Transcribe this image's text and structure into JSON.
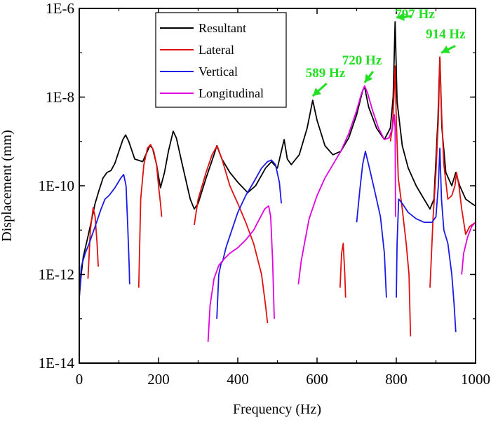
{
  "chart_data": {
    "type": "line",
    "xlabel": "Frequency (Hz)",
    "ylabel": "Displacement (mm)",
    "xlim": [
      0,
      1000
    ],
    "ylim": [
      1e-14,
      1e-06
    ],
    "yscale": "log",
    "grid": false,
    "legend_position": "top-center",
    "x_ticks": [
      0,
      200,
      400,
      600,
      800,
      1000
    ],
    "x_tick_labels": [
      "0",
      "200",
      "400",
      "600",
      "800",
      "1000"
    ],
    "y_major_ticks": [
      1e-14,
      1e-12,
      1e-10,
      1e-08,
      1e-06
    ],
    "y_tick_labels": [
      "1E-14",
      "1E-12",
      "1E-10",
      "1E-8",
      "1E-6"
    ],
    "series": [
      {
        "name": "Resultant",
        "color": "#000000",
        "segments": [
          [
            [
              0,
              3e-13
            ],
            [
              5,
              1e-12
            ],
            [
              10,
              2.5e-12
            ],
            [
              20,
              6e-12
            ],
            [
              30,
              1.5e-11
            ],
            [
              40,
              4e-11
            ],
            [
              50,
              8e-11
            ],
            [
              60,
              1.5e-10
            ],
            [
              70,
              2e-10
            ],
            [
              80,
              2.2e-10
            ],
            [
              90,
              3.2e-10
            ],
            [
              100,
              6e-10
            ],
            [
              110,
              1.1e-09
            ],
            [
              117,
              1.4e-09
            ],
            [
              125,
              1e-09
            ],
            [
              140,
              4e-10
            ],
            [
              160,
              3.5e-10
            ],
            [
              178,
              8e-10
            ],
            [
              185,
              7e-10
            ],
            [
              195,
              3e-10
            ],
            [
              205,
              9e-11
            ],
            [
              215,
              2e-10
            ],
            [
              225,
              6e-10
            ],
            [
              237,
              1.7e-09
            ],
            [
              245,
              1.2e-09
            ],
            [
              260,
              3e-10
            ],
            [
              280,
              5e-11
            ],
            [
              290,
              3e-11
            ],
            [
              300,
              4e-11
            ],
            [
              320,
              1.5e-10
            ],
            [
              340,
              5e-10
            ],
            [
              347,
              8e-10
            ],
            [
              360,
              4e-10
            ],
            [
              380,
              2e-10
            ],
            [
              400,
              1.2e-10
            ],
            [
              425,
              7e-11
            ],
            [
              445,
              1e-10
            ],
            [
              470,
              2.5e-10
            ],
            [
              485,
              3.5e-10
            ],
            [
              500,
              2.5e-10
            ],
            [
              510,
              6e-10
            ],
            [
              517,
              1.1e-09
            ],
            [
              525,
              4e-10
            ],
            [
              535,
              3e-10
            ],
            [
              555,
              5e-10
            ],
            [
              575,
              2e-09
            ],
            [
              589,
              8.5e-09
            ],
            [
              600,
              3e-09
            ],
            [
              620,
              8e-10
            ],
            [
              640,
              5e-10
            ],
            [
              660,
              6e-10
            ],
            [
              680,
              1.2e-09
            ],
            [
              700,
              4e-09
            ],
            [
              715,
              1.4e-08
            ],
            [
              720,
              1.7e-08
            ],
            [
              730,
              6e-09
            ],
            [
              750,
              2e-09
            ],
            [
              770,
              1.1e-09
            ],
            [
              785,
              2e-09
            ],
            [
              792,
              1e-08
            ],
            [
              797,
              5e-07
            ],
            [
              802,
              8e-09
            ],
            [
              815,
              8e-10
            ],
            [
              830,
              2.5e-10
            ],
            [
              850,
              1e-10
            ],
            [
              870,
              5e-11
            ],
            [
              885,
              3e-11
            ],
            [
              895,
              5e-11
            ],
            [
              905,
              3e-09
            ],
            [
              910,
              8e-08
            ],
            [
              915,
              2e-09
            ],
            [
              925,
              2e-10
            ],
            [
              940,
              1e-10
            ],
            [
              950,
              2e-10
            ],
            [
              960,
              1e-10
            ],
            [
              975,
              5e-11
            ],
            [
              990,
              4e-11
            ],
            [
              1000,
              3.5e-11
            ]
          ]
        ]
      },
      {
        "name": "Lateral",
        "color": "#e01010",
        "segments": [
          [
            [
              22,
              8e-13
            ],
            [
              28,
              1e-11
            ],
            [
              35,
              3.2e-11
            ],
            [
              40,
              2e-11
            ],
            [
              45,
              5e-12
            ],
            [
              48,
              1.5e-12
            ]
          ],
          [
            [
              150,
              5e-13
            ],
            [
              155,
              5e-11
            ],
            [
              163,
              3e-10
            ],
            [
              172,
              7e-10
            ],
            [
              180,
              8.5e-10
            ],
            [
              188,
              6e-10
            ],
            [
              195,
              3e-10
            ],
            [
              200,
              1e-10
            ],
            [
              205,
              4e-11
            ],
            [
              208,
              2e-11
            ]
          ],
          [
            [
              290,
              1.3e-11
            ],
            [
              300,
              5e-11
            ],
            [
              320,
              2e-10
            ],
            [
              335,
              5e-10
            ],
            [
              348,
              8e-10
            ],
            [
              360,
              4e-10
            ],
            [
              380,
              1e-10
            ],
            [
              400,
              4e-11
            ],
            [
              420,
              1.5e-11
            ],
            [
              440,
              5e-12
            ],
            [
              460,
              1e-12
            ],
            [
              470,
              2e-13
            ],
            [
              475,
              8e-14
            ]
          ],
          [
            [
              658,
              5e-13
            ],
            [
              662,
              3e-12
            ],
            [
              666,
              5e-12
            ],
            [
              670,
              1e-12
            ],
            [
              672,
              3e-13
            ]
          ],
          [
            [
              785,
              1e-09
            ],
            [
              790,
              2e-09
            ],
            [
              794,
              1e-08
            ],
            [
              797,
              5e-08
            ],
            [
              800,
              3e-09
            ],
            [
              805,
              1.5e-10
            ],
            [
              815,
              3e-11
            ],
            [
              825,
              5e-12
            ],
            [
              832,
              1e-12
            ],
            [
              836,
              4e-14
            ]
          ],
          [
            [
              885,
              5e-13
            ],
            [
              893,
              2e-11
            ],
            [
              900,
              2e-10
            ],
            [
              906,
              3e-09
            ],
            [
              910,
              8e-08
            ],
            [
              914,
              5e-09
            ],
            [
              920,
              3e-10
            ],
            [
              930,
              5e-11
            ],
            [
              940,
              6e-11
            ],
            [
              948,
              1e-10
            ],
            [
              952,
              2e-10
            ],
            [
              958,
              1e-10
            ],
            [
              965,
              3e-11
            ],
            [
              975,
              8e-12
            ],
            [
              985,
              1.2e-11
            ],
            [
              1000,
              1.5e-11
            ]
          ]
        ]
      },
      {
        "name": "Vertical",
        "color": "#1a1ae6",
        "segments": [
          [
            [
              0,
              3e-13
            ],
            [
              5,
              1.5e-12
            ],
            [
              15,
              3e-12
            ],
            [
              25,
              5e-12
            ],
            [
              40,
              1.2e-11
            ],
            [
              55,
              3e-11
            ],
            [
              65,
              5e-11
            ],
            [
              75,
              6e-11
            ],
            [
              90,
              9e-11
            ],
            [
              105,
              1.5e-10
            ],
            [
              112,
              1.8e-10
            ],
            [
              118,
              1e-10
            ],
            [
              122,
              1.5e-11
            ],
            [
              126,
              1.5e-12
            ],
            [
              127,
              6e-13
            ]
          ],
          [
            [
              347,
              1e-13
            ],
            [
              352,
              1e-12
            ],
            [
              358,
              1.8e-12
            ],
            [
              362,
              2e-12
            ],
            [
              370,
              4e-12
            ],
            [
              385,
              1e-11
            ],
            [
              400,
              2.5e-11
            ],
            [
              420,
              6e-11
            ],
            [
              440,
              1.2e-10
            ],
            [
              460,
              2.5e-10
            ],
            [
              475,
              3.5e-10
            ],
            [
              485,
              3.8e-10
            ],
            [
              495,
              3e-10
            ],
            [
              505,
              1.2e-10
            ],
            [
              510,
              4e-11
            ]
          ],
          [
            [
              700,
              1.5e-11
            ],
            [
              708,
              8e-11
            ],
            [
              715,
              3e-10
            ],
            [
              722,
              6e-10
            ],
            [
              730,
              3e-10
            ],
            [
              745,
              8e-11
            ],
            [
              760,
              2e-11
            ],
            [
              770,
              3e-12
            ],
            [
              775,
              3e-13
            ]
          ],
          [
            [
              800,
              3e-13
            ],
            [
              802,
              5e-12
            ],
            [
              806,
              5e-11
            ],
            [
              815,
              4e-11
            ],
            [
              830,
              2.5e-11
            ],
            [
              850,
              1.8e-11
            ],
            [
              870,
              1.5e-11
            ],
            [
              890,
              1.5e-11
            ],
            [
              900,
              2e-11
            ],
            [
              906,
              1e-10
            ],
            [
              910,
              7e-10
            ],
            [
              914,
              5e-11
            ],
            [
              920,
              1e-11
            ],
            [
              930,
              5e-12
            ],
            [
              940,
              1e-12
            ],
            [
              946,
              2e-13
            ],
            [
              950,
              5e-14
            ]
          ]
        ]
      },
      {
        "name": "Longitudinal",
        "color": "#e000e0",
        "segments": [
          [
            [
              325,
              3e-14
            ],
            [
              330,
              2e-13
            ],
            [
              340,
              8e-13
            ],
            [
              352,
              1.6e-12
            ],
            [
              365,
              2.2e-12
            ],
            [
              380,
              3e-12
            ],
            [
              400,
              4e-12
            ],
            [
              420,
              6e-12
            ],
            [
              440,
              1e-11
            ],
            [
              455,
              1.8e-11
            ],
            [
              468,
              3e-11
            ],
            [
              478,
              3.5e-11
            ],
            [
              483,
              2e-11
            ],
            [
              488,
              2e-12
            ],
            [
              492,
              1e-13
            ]
          ],
          [
            [
              553,
              6e-13
            ],
            [
              560,
              2e-12
            ],
            [
              570,
              6e-12
            ],
            [
              580,
              1.8e-11
            ],
            [
              600,
              6e-11
            ],
            [
              620,
              1.5e-10
            ],
            [
              640,
              3e-10
            ],
            [
              660,
              6e-10
            ],
            [
              680,
              1.5e-09
            ],
            [
              700,
              5e-09
            ],
            [
              712,
              1.2e-08
            ],
            [
              720,
              1.8e-08
            ],
            [
              728,
              1.2e-08
            ],
            [
              740,
              5e-09
            ],
            [
              755,
              2e-09
            ],
            [
              770,
              1.1e-09
            ],
            [
              782,
              1.2e-09
            ],
            [
              790,
              2e-09
            ],
            [
              795,
              4e-09
            ],
            [
              797,
              2e-09
            ],
            [
              798,
              2e-11
            ]
          ],
          [
            [
              965,
              1e-12
            ],
            [
              970,
              3e-12
            ],
            [
              980,
              7e-12
            ],
            [
              990,
              1.2e-11
            ],
            [
              1000,
              1.5e-11
            ]
          ]
        ]
      }
    ],
    "annotations": [
      {
        "text": "589 Hz",
        "color": "#22e022",
        "point_x": 589,
        "point_y": 8.5e-09
      },
      {
        "text": "720 Hz",
        "color": "#22e022",
        "point_x": 720,
        "point_y": 1.7e-08
      },
      {
        "text": "797 Hz",
        "color": "#22e022",
        "point_x": 797,
        "point_y": 5e-07
      },
      {
        "text": "914 Hz",
        "color": "#22e022",
        "point_x": 910,
        "point_y": 8e-08
      }
    ]
  }
}
